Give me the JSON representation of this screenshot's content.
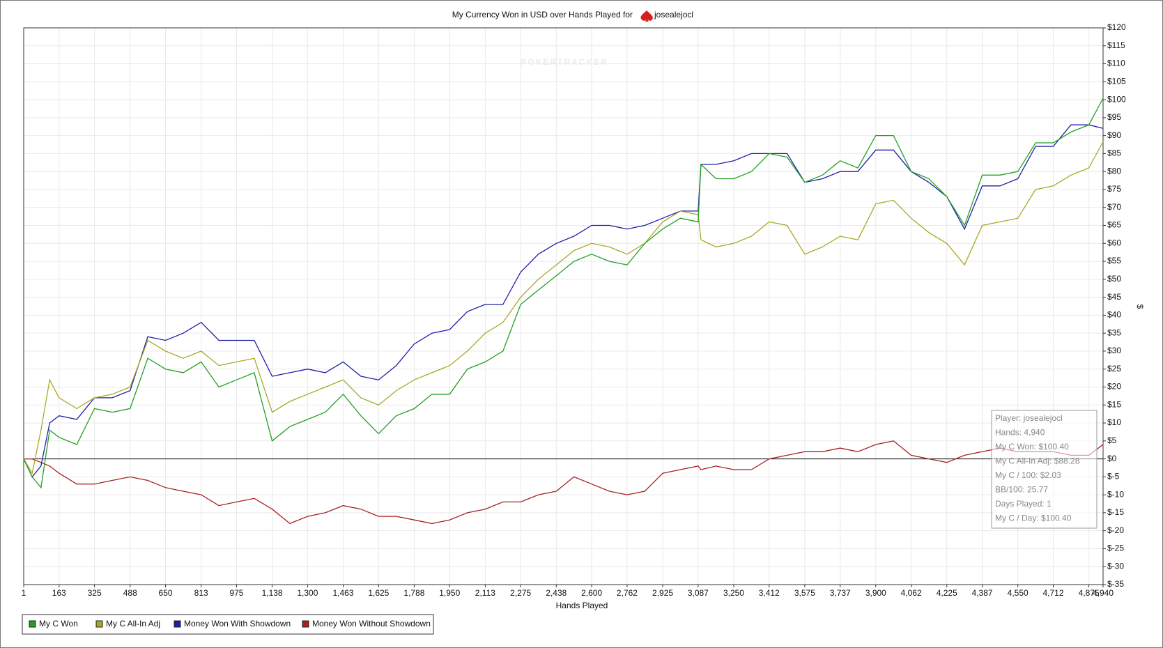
{
  "chart_data": {
    "type": "line",
    "title": "My Currency Won in USD over Hands Played for",
    "player": "josealejocl",
    "watermark": "POKERTRACKER",
    "x_label": "Hands Played",
    "y_label": "$",
    "grid": true,
    "x": [
      1,
      40,
      80,
      120,
      163,
      244,
      325,
      406,
      488,
      569,
      650,
      731,
      813,
      894,
      975,
      1056,
      1138,
      1219,
      1300,
      1381,
      1463,
      1544,
      1625,
      1706,
      1788,
      1869,
      1950,
      2031,
      2113,
      2194,
      2275,
      2356,
      2438,
      2519,
      2600,
      2681,
      2762,
      2843,
      2925,
      3006,
      3087,
      3100,
      3169,
      3250,
      3331,
      3412,
      3494,
      3575,
      3656,
      3737,
      3818,
      3900,
      3981,
      4062,
      4143,
      4225,
      4306,
      4387,
      4468,
      4550,
      4631,
      4712,
      4793,
      4875,
      4940
    ],
    "series": [
      {
        "name": "My C Won",
        "color": "#22a022",
        "values": [
          0,
          -5,
          -8,
          8,
          6,
          4,
          14,
          13,
          14,
          28,
          25,
          24,
          27,
          20,
          22,
          24,
          5,
          9,
          11,
          13,
          18,
          12,
          7,
          12,
          14,
          18,
          18,
          25,
          27,
          30,
          43,
          47,
          51,
          55,
          57,
          55,
          54,
          60,
          64,
          67,
          66,
          82,
          78,
          78,
          80,
          85,
          84,
          77,
          79,
          83,
          81,
          90,
          90,
          80,
          78,
          73,
          65,
          79,
          79,
          80,
          88,
          88,
          91,
          93,
          100.4
        ]
      },
      {
        "name": "My C All-In Adj",
        "color": "#a8a824",
        "values": [
          0,
          -4,
          8,
          22,
          17,
          14,
          17,
          18,
          20,
          33,
          30,
          28,
          30,
          26,
          27,
          28,
          13,
          16,
          18,
          20,
          22,
          17,
          15,
          19,
          22,
          24,
          26,
          30,
          35,
          38,
          45,
          50,
          54,
          58,
          60,
          59,
          57,
          60,
          66,
          69,
          68,
          61,
          59,
          60,
          62,
          66,
          65,
          57,
          59,
          62,
          61,
          71,
          72,
          67,
          63,
          60,
          54,
          65,
          66,
          67,
          75,
          76,
          79,
          81,
          88.28
        ]
      },
      {
        "name": "Money Won With Showdown",
        "color": "#1e1ea6",
        "values": [
          0,
          -5,
          -2,
          10,
          12,
          11,
          17,
          17,
          19,
          34,
          33,
          35,
          38,
          33,
          33,
          33,
          23,
          24,
          25,
          24,
          27,
          23,
          22,
          26,
          32,
          35,
          36,
          41,
          43,
          43,
          52,
          57,
          60,
          62,
          65,
          65,
          64,
          65,
          67,
          69,
          69,
          82,
          82,
          83,
          85,
          85,
          85,
          77,
          78,
          80,
          80,
          86,
          86,
          80,
          77,
          73,
          64,
          76,
          76,
          78,
          87,
          87,
          93,
          93,
          92
        ]
      },
      {
        "name": "Money Won Without Showdown",
        "color": "#a82020",
        "values": [
          0,
          0,
          -1,
          -2,
          -4,
          -7,
          -7,
          -6,
          -5,
          -6,
          -8,
          -9,
          -10,
          -13,
          -12,
          -11,
          -14,
          -18,
          -16,
          -15,
          -13,
          -14,
          -16,
          -16,
          -17,
          -18,
          -17,
          -15,
          -14,
          -12,
          -12,
          -10,
          -9,
          -5,
          -7,
          -9,
          -10,
          -9,
          -4,
          -3,
          -2,
          -3,
          -2,
          -3,
          -3,
          0,
          1,
          2,
          2,
          3,
          2,
          4,
          5,
          1,
          0,
          -1,
          1,
          2,
          3,
          2,
          2,
          2,
          1,
          1,
          4
        ]
      }
    ],
    "xlim": [
      1,
      4940
    ],
    "xticks": [
      1,
      163,
      325,
      488,
      650,
      813,
      975,
      {
        "value": 1138,
        "label": "1,138"
      },
      {
        "value": 1300,
        "label": "1,300"
      },
      {
        "value": 1463,
        "label": "1,463"
      },
      {
        "value": 1625,
        "label": "1,625"
      },
      {
        "value": 1788,
        "label": "1,788"
      },
      {
        "value": 1950,
        "label": "1,950"
      },
      {
        "value": 2113,
        "label": "2,113"
      },
      {
        "value": 2275,
        "label": "2,275"
      },
      {
        "value": 2438,
        "label": "2,438"
      },
      {
        "value": 2600,
        "label": "2,600"
      },
      {
        "value": 2762,
        "label": "2,762"
      },
      {
        "value": 2925,
        "label": "2,925"
      },
      {
        "value": 3087,
        "label": "3,087"
      },
      {
        "value": 3250,
        "label": "3,250"
      },
      {
        "value": 3412,
        "label": "3,412"
      },
      {
        "value": 3575,
        "label": "3,575"
      },
      {
        "value": 3737,
        "label": "3,737"
      },
      {
        "value": 3900,
        "label": "3,900"
      },
      {
        "value": 4062,
        "label": "4,062"
      },
      {
        "value": 4225,
        "label": "4,225"
      },
      {
        "value": 4387,
        "label": "4,387"
      },
      {
        "value": 4550,
        "label": "4,550"
      },
      {
        "value": 4712,
        "label": "4,712"
      },
      {
        "value": 4875,
        "label": "4,875"
      },
      {
        "value": 4940,
        "label": "4,940"
      }
    ],
    "ylim": [
      -35,
      120
    ],
    "yticks": [
      {
        "value": 120,
        "label": "$120"
      },
      {
        "value": 115,
        "label": "$115"
      },
      {
        "value": 110,
        "label": "$110"
      },
      {
        "value": 105,
        "label": "$105"
      },
      {
        "value": 100,
        "label": "$100"
      },
      {
        "value": 95,
        "label": "$95"
      },
      {
        "value": 90,
        "label": "$90"
      },
      {
        "value": 85,
        "label": "$85"
      },
      {
        "value": 80,
        "label": "$80"
      },
      {
        "value": 75,
        "label": "$75"
      },
      {
        "value": 70,
        "label": "$70"
      },
      {
        "value": 65,
        "label": "$65"
      },
      {
        "value": 60,
        "label": "$60"
      },
      {
        "value": 55,
        "label": "$55"
      },
      {
        "value": 50,
        "label": "$50"
      },
      {
        "value": 45,
        "label": "$45"
      },
      {
        "value": 40,
        "label": "$40"
      },
      {
        "value": 35,
        "label": "$35"
      },
      {
        "value": 30,
        "label": "$30"
      },
      {
        "value": 25,
        "label": "$25"
      },
      {
        "value": 20,
        "label": "$20"
      },
      {
        "value": 15,
        "label": "$15"
      },
      {
        "value": 10,
        "label": "$10"
      },
      {
        "value": 5,
        "label": "$5"
      },
      {
        "value": 0,
        "label": "$0"
      },
      {
        "value": -5,
        "label": "$-5"
      },
      {
        "value": -10,
        "label": "$-10"
      },
      {
        "value": -15,
        "label": "$-15"
      },
      {
        "value": -20,
        "label": "$-20"
      },
      {
        "value": -25,
        "label": "$-25"
      },
      {
        "value": -30,
        "label": "$-30"
      },
      {
        "value": -35,
        "label": "$-35"
      }
    ],
    "tooltip": [
      "Player: josealejocl",
      "Hands: 4,940",
      "My C Won: $100.40",
      "My C All-In Adj: $88.28",
      "My C / 100: $2.03",
      "BB/100: 25.77",
      "Days Played: 1",
      "My C / Day: $100.40"
    ]
  }
}
